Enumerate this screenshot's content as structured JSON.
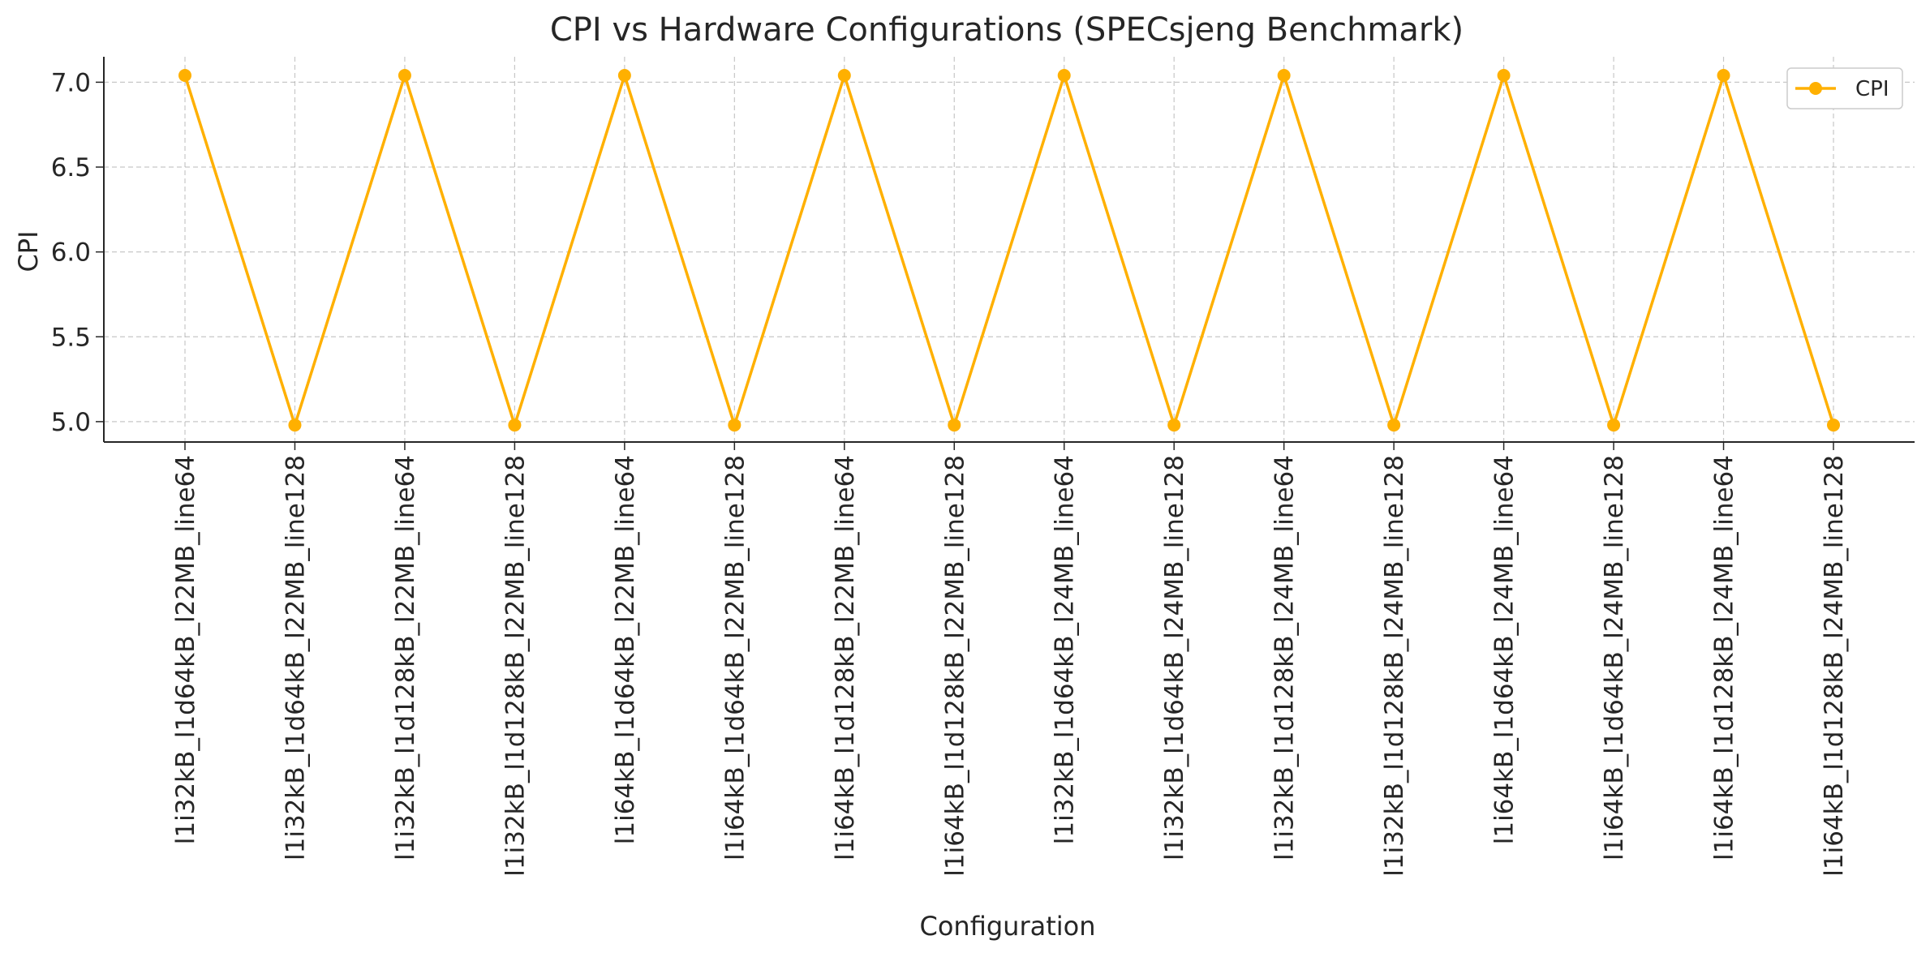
{
  "chart_data": {
    "type": "line",
    "title": "CPI vs Hardware Configurations (SPECsjeng Benchmark)",
    "xlabel": "Configuration",
    "ylabel": "CPI",
    "ylim": [
      4.88,
      7.15
    ],
    "yticks": [
      "5.0",
      "5.5",
      "6.0",
      "6.5",
      "7.0"
    ],
    "grid": true,
    "legend_position": "top-right",
    "categories": [
      "l1i32kB_l1d64kB_l22MB_line64",
      "l1i32kB_l1d64kB_l22MB_line128",
      "l1i32kB_l1d128kB_l22MB_line64",
      "l1i32kB_l1d128kB_l22MB_line128",
      "l1i64kB_l1d64kB_l22MB_line64",
      "l1i64kB_l1d64kB_l22MB_line128",
      "l1i64kB_l1d128kB_l22MB_line64",
      "l1i64kB_l1d128kB_l22MB_line128",
      "l1i32kB_l1d64kB_l24MB_line64",
      "l1i32kB_l1d64kB_l24MB_line128",
      "l1i32kB_l1d128kB_l24MB_line64",
      "l1i32kB_l1d128kB_l24MB_line128",
      "l1i64kB_l1d64kB_l24MB_line64",
      "l1i64kB_l1d64kB_l24MB_line128",
      "l1i64kB_l1d128kB_l24MB_line64",
      "l1i64kB_l1d128kB_l24MB_line128"
    ],
    "series": [
      {
        "name": "CPI",
        "color": "#FFB000",
        "marker": "circle",
        "values": [
          7.04,
          4.98,
          7.04,
          4.98,
          7.04,
          4.98,
          7.04,
          4.98,
          7.04,
          4.98,
          7.04,
          4.98,
          7.04,
          4.98,
          7.04,
          4.98
        ]
      }
    ]
  }
}
